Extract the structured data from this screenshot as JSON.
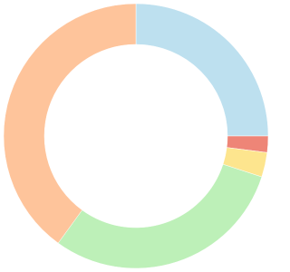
{
  "chart_data": {
    "type": "pie",
    "values": [
      25,
      2,
      3,
      30,
      40
    ],
    "colors": [
      "#bde0ef",
      "#ee8577",
      "#fde58e",
      "#bdf0b8",
      "#fec49b"
    ]
  }
}
